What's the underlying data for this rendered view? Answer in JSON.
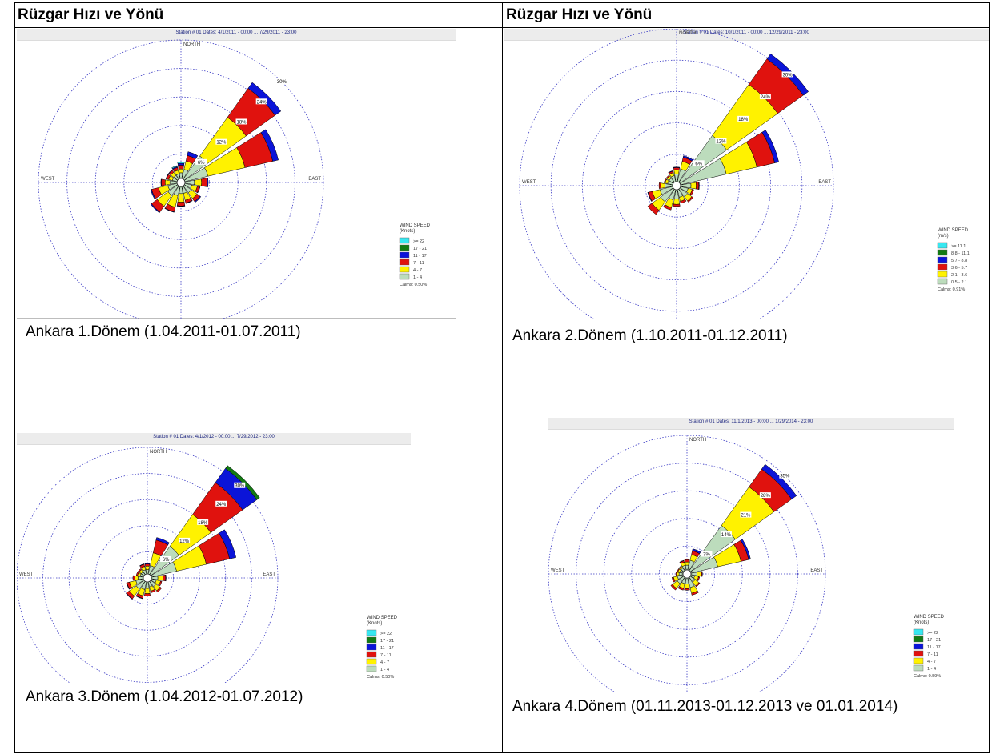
{
  "table": {
    "header_left": "Rüzgar Hızı ve Yönü",
    "header_right": "Rüzgar Hızı ve Yönü"
  },
  "cardinals": {
    "north": "NORTH",
    "south": "SOUTH",
    "east": "EAST",
    "west": "WEST"
  },
  "chart_data": [
    {
      "type": "windrose",
      "caption": "Ankara 1.Dönem (1.04.2011-01.07.2011)",
      "title": "Station # 01 Dates: 4/1/2011 - 00:00 ... 7/29/2011 - 23:00",
      "ring_labels": [
        "6%",
        "12%",
        "18%",
        "24%",
        "30%"
      ],
      "legend_title": "WIND SPEED",
      "legend_unit": "(Knots)",
      "categories": [
        ">= 22",
        "17 - 21",
        "11 - 17",
        "7 - 11",
        "4 - 7",
        "1 - 4"
      ],
      "category_colors": [
        "#37e7f0",
        "#137a13",
        "#0b14d8",
        "#e0120e",
        "#fff200",
        "#bcdcbc"
      ],
      "calms": "Calms: 0.50%",
      "rmax": 30,
      "directions": [
        0,
        22.5,
        45,
        67.5,
        90,
        112.5,
        135,
        157.5,
        180,
        202.5,
        225,
        247.5,
        270,
        292.5,
        315,
        337.5
      ],
      "frequencies": [
        [
          0.3,
          0,
          0,
          0,
          0,
          0,
          0,
          0,
          0,
          0,
          0,
          0,
          0,
          0,
          0,
          0.2
        ],
        [
          0,
          0,
          0,
          0,
          0,
          0,
          0,
          0,
          0,
          0,
          0,
          0,
          0,
          0,
          0,
          0
        ],
        [
          0.4,
          0.8,
          1.5,
          1.2,
          0.2,
          0.1,
          0.2,
          0.1,
          0.1,
          0.1,
          0.2,
          0.2,
          0.1,
          0.1,
          0.1,
          0.2
        ],
        [
          0.8,
          1.2,
          7.5,
          6.0,
          1.2,
          0.5,
          0.8,
          0.6,
          0.8,
          1.0,
          1.5,
          1.5,
          0.8,
          0.5,
          0.5,
          0.6
        ],
        [
          0.8,
          1.8,
          10.0,
          8.0,
          1.5,
          1.2,
          1.5,
          1.5,
          1.8,
          2.5,
          2.8,
          2.0,
          1.0,
          0.8,
          0.8,
          0.8
        ],
        [
          1.2,
          2.0,
          6.0,
          5.0,
          2.0,
          1.5,
          1.8,
          1.5,
          1.5,
          2.0,
          2.5,
          2.0,
          1.5,
          1.0,
          1.0,
          1.0
        ]
      ]
    },
    {
      "type": "windrose",
      "caption": "Ankara 2.Dönem (1.10.2011-01.12.2011)",
      "title": "Station # 01 Dates: 10/1/2011 - 00:00 ... 12/29/2011 - 23:00",
      "ring_labels": [
        "6%",
        "12%",
        "18%",
        "24%",
        "30%"
      ],
      "legend_title": "WIND SPEED",
      "legend_unit": "(m/s)",
      "categories": [
        ">= 11.1",
        "8.8 - 11.1",
        "5.7 - 8.8",
        "3.6 - 5.7",
        "2.1 - 3.6",
        "0.5 - 2.1"
      ],
      "category_colors": [
        "#37e7f0",
        "#137a13",
        "#0b14d8",
        "#e0120e",
        "#fff200",
        "#bcdcbc"
      ],
      "calms": "Calms: 0.91%",
      "rmax": 30,
      "directions": [
        0,
        22.5,
        45,
        67.5,
        90,
        112.5,
        135,
        157.5,
        180,
        202.5,
        225,
        247.5,
        270,
        292.5,
        315,
        337.5
      ],
      "frequencies": [
        [
          0,
          0,
          0,
          0,
          0,
          0,
          0,
          0,
          0,
          0,
          0,
          0,
          0,
          0,
          0,
          0
        ],
        [
          0,
          0,
          0,
          0,
          0,
          0,
          0,
          0,
          0,
          0,
          0,
          0,
          0,
          0,
          0,
          0
        ],
        [
          0.1,
          0.3,
          1.2,
          0.8,
          0.1,
          0,
          0,
          0,
          0,
          0,
          0,
          0.1,
          0,
          0,
          0,
          0.1
        ],
        [
          0.4,
          0.8,
          6.0,
          3.5,
          0.5,
          0.3,
          0.3,
          0.4,
          0.4,
          0.5,
          1.0,
          0.8,
          0.3,
          0.2,
          0.2,
          0.3
        ],
        [
          0.8,
          1.5,
          12.0,
          6.0,
          1.0,
          0.8,
          1.0,
          0.8,
          1.0,
          1.5,
          2.0,
          1.5,
          0.8,
          0.5,
          0.5,
          0.6
        ],
        [
          1.5,
          2.5,
          11.0,
          9.0,
          2.0,
          1.5,
          1.8,
          1.5,
          1.8,
          2.0,
          3.0,
          2.5,
          1.5,
          1.0,
          1.0,
          1.2
        ]
      ]
    },
    {
      "type": "windrose",
      "caption": "Ankara 3.Dönem (1.04.2012-01.07.2012)",
      "title": "Station # 01 Dates: 4/1/2012 - 00:00 ... 7/29/2012 - 23:00",
      "ring_labels": [
        "6%",
        "12%",
        "18%",
        "24%",
        "30%"
      ],
      "legend_title": "WIND SPEED",
      "legend_unit": "(Knots)",
      "categories": [
        ">= 22",
        "17 - 21",
        "11 - 17",
        "7 - 11",
        "4 - 7",
        "1 - 4"
      ],
      "category_colors": [
        "#37e7f0",
        "#137a13",
        "#0b14d8",
        "#e0120e",
        "#fff200",
        "#bcdcbc"
      ],
      "calms": "Calms: 0.50%",
      "rmax": 30,
      "directions": [
        0,
        22.5,
        45,
        67.5,
        90,
        112.5,
        135,
        157.5,
        180,
        202.5,
        225,
        247.5,
        270,
        292.5,
        315,
        337.5
      ],
      "frequencies": [
        [
          0,
          0,
          0,
          0,
          0,
          0,
          0,
          0,
          0,
          0,
          0,
          0,
          0,
          0,
          0,
          0
        ],
        [
          0,
          0,
          0.8,
          0,
          0,
          0,
          0,
          0,
          0,
          0,
          0,
          0,
          0,
          0,
          0,
          0
        ],
        [
          0.2,
          0.6,
          4.0,
          1.5,
          0.1,
          0,
          0,
          0,
          0,
          0.1,
          0.1,
          0.1,
          0,
          0,
          0,
          0.1
        ],
        [
          0.5,
          3.0,
          9.0,
          5.5,
          0.6,
          0.3,
          0.4,
          0.4,
          0.5,
          0.6,
          0.8,
          0.6,
          0.4,
          0.3,
          0.3,
          0.5
        ],
        [
          0.8,
          3.0,
          9.0,
          7.0,
          1.2,
          1.0,
          1.2,
          1.0,
          1.2,
          1.5,
          2.0,
          1.5,
          0.8,
          0.6,
          0.6,
          0.8
        ],
        [
          1.0,
          2.0,
          8.0,
          6.0,
          1.5,
          1.2,
          1.5,
          1.2,
          1.5,
          1.8,
          2.2,
          1.8,
          1.2,
          0.8,
          0.8,
          1.0
        ]
      ]
    },
    {
      "type": "windrose",
      "caption": "Ankara 4.Dönem (01.11.2013-01.12.2013 ve 01.01.2014)",
      "title": "Station # 01 Dates: 11/1/2013 - 00:00 ... 1/29/2014 - 23:00",
      "ring_labels": [
        "7%",
        "14%",
        "21%",
        "28%",
        "35%"
      ],
      "legend_title": "WIND SPEED",
      "legend_unit": "(Knots)",
      "categories": [
        ">= 22",
        "17 - 21",
        "11 - 17",
        "7 - 11",
        "4 - 7",
        "1 - 4"
      ],
      "category_colors": [
        "#37e7f0",
        "#137a13",
        "#0b14d8",
        "#e0120e",
        "#fff200",
        "#bcdcbc"
      ],
      "calms": "Calms: 0.59%",
      "rmax": 35,
      "directions": [
        0,
        22.5,
        45,
        67.5,
        90,
        112.5,
        135,
        157.5,
        180,
        202.5,
        225,
        247.5,
        270,
        292.5,
        315,
        337.5
      ],
      "frequencies": [
        [
          0,
          0,
          0,
          0,
          0,
          0,
          0,
          0,
          0,
          0,
          0,
          0,
          0,
          0,
          0,
          0
        ],
        [
          0,
          0,
          0,
          0,
          0,
          0,
          0,
          0,
          0,
          0,
          0,
          0,
          0,
          0,
          0,
          0
        ],
        [
          0.2,
          0.5,
          1.5,
          0.5,
          0.1,
          0,
          0,
          0,
          0,
          0,
          0,
          0,
          0,
          0,
          0,
          0.1
        ],
        [
          0.6,
          1.0,
          5.5,
          2.0,
          0.3,
          0.3,
          0.3,
          0.5,
          0.4,
          0.5,
          0.5,
          0.4,
          0.2,
          0.2,
          0.2,
          0.4
        ],
        [
          0.8,
          1.5,
          12.0,
          6.0,
          1.0,
          1.0,
          1.2,
          1.5,
          1.2,
          1.2,
          1.5,
          1.0,
          0.6,
          0.5,
          0.5,
          0.8
        ],
        [
          1.2,
          2.5,
          14.0,
          7.0,
          1.5,
          1.0,
          1.5,
          2.5,
          1.5,
          1.5,
          2.0,
          1.5,
          1.0,
          0.8,
          0.8,
          1.2
        ]
      ]
    }
  ]
}
